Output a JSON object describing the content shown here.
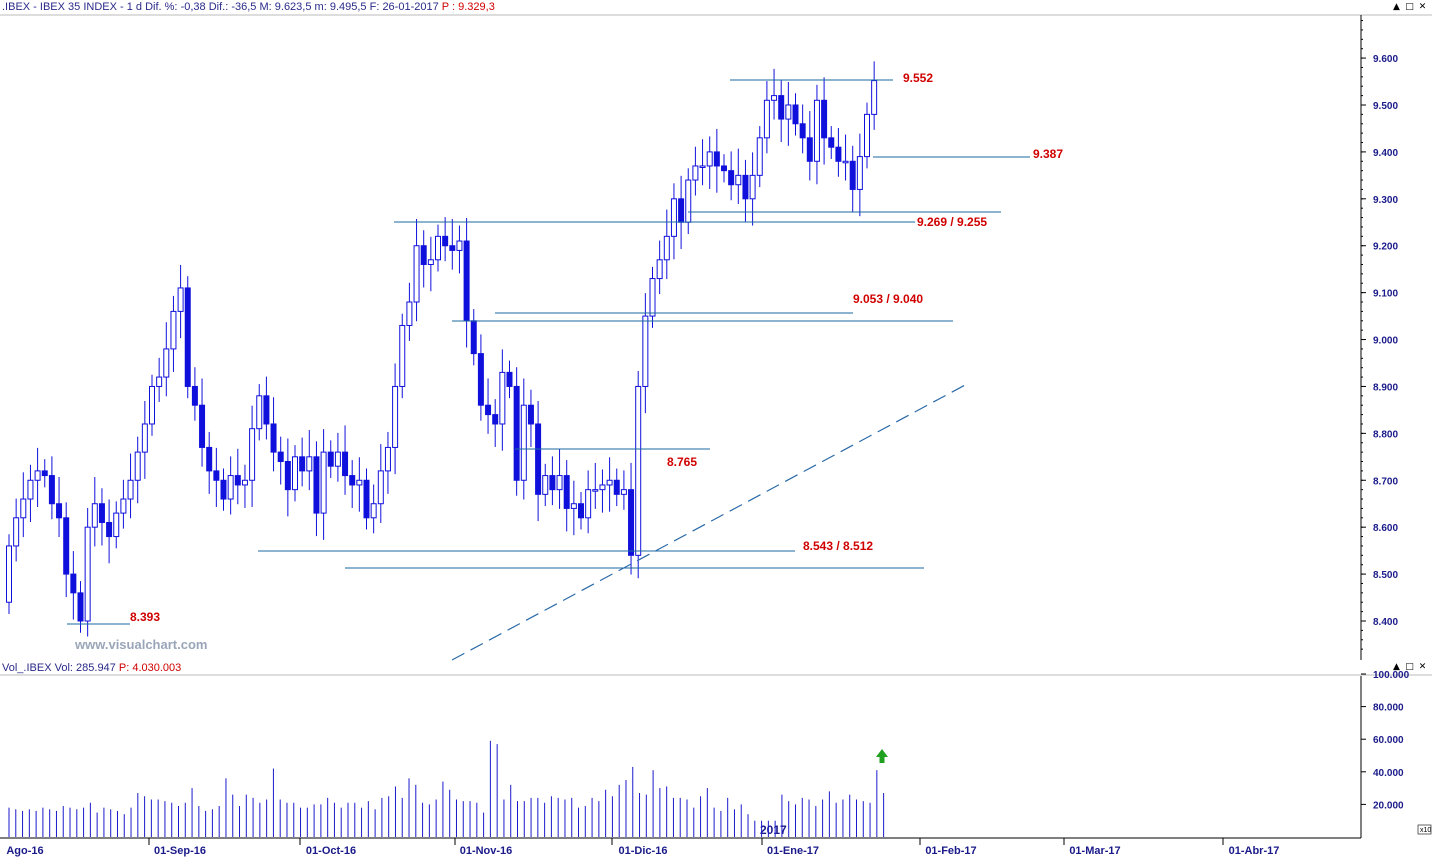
{
  "price_header": {
    "symbol": ".IBEX",
    "name": "IBEX 35 INDEX",
    "period": "1 d",
    "change_pct_label": "Dif. %:",
    "change_pct": "-0,38",
    "change_label": "Dif.:",
    "change": "-36,5",
    "high_label": "M:",
    "high": "9.623,5",
    "low_label": "m:",
    "low": "9.495,5",
    "date_label": "F:",
    "date": "26-01-2017",
    "price_label": "P :",
    "price": "9.329,3"
  },
  "volume_header": {
    "label": "Vol_.IBEX",
    "vol_label": "Vol:",
    "vol": "285.947",
    "price_label": "P:",
    "price": "4.030.003"
  },
  "watermark": "www.visualchart.com",
  "scale_multiplier": "x10",
  "year_marker": "2017",
  "window_buttons": {
    "minimize": "▲",
    "restore": "□",
    "close": "✕"
  },
  "colors": {
    "candle": "#1010dd",
    "level_line": "#1a6aa0",
    "level_label": "#d00000",
    "trendline": "#2a6aa8",
    "volume_bar": "#1a1acc",
    "arrow": "#1fa01f",
    "axis_text": "#1a1a8a"
  },
  "chart_data": [
    {
      "type": "candlestick",
      "title": "IBEX 35 INDEX",
      "x_tick_labels": [
        "Ago-16",
        "01-Sep-16",
        "01-Oct-16",
        "01-Nov-16",
        "01-Dic-16",
        "01-Ene-17",
        "01-Feb-17",
        "01-Mar-17",
        "01-Abr-17"
      ],
      "y_tick_labels": [
        "8.400",
        "8.500",
        "8.600",
        "8.700",
        "8.800",
        "8.900",
        "9.000",
        "9.100",
        "9.200",
        "9.300",
        "9.400",
        "9.500",
        "9.600"
      ],
      "ylim": [
        8.27,
        9.7
      ],
      "grid": false,
      "closes": [
        8.56,
        8.62,
        8.66,
        8.7,
        8.72,
        8.71,
        8.65,
        8.62,
        8.5,
        8.46,
        8.4,
        8.6,
        8.65,
        8.61,
        8.58,
        8.63,
        8.66,
        8.7,
        8.76,
        8.82,
        8.9,
        8.92,
        8.98,
        9.06,
        9.11,
        8.9,
        8.86,
        8.77,
        8.72,
        8.7,
        8.66,
        8.71,
        8.69,
        8.7,
        8.81,
        8.88,
        8.82,
        8.76,
        8.74,
        8.68,
        8.75,
        8.72,
        8.75,
        8.63,
        8.76,
        8.73,
        8.76,
        8.71,
        8.69,
        8.7,
        8.62,
        8.65,
        8.72,
        8.77,
        8.9,
        9.03,
        9.08,
        9.2,
        9.16,
        9.17,
        9.22,
        9.2,
        9.19,
        9.21,
        9.04,
        8.97,
        8.86,
        8.84,
        8.82,
        8.93,
        8.9,
        8.7,
        8.86,
        8.82,
        8.67,
        8.71,
        8.68,
        8.71,
        8.64,
        8.65,
        8.62,
        8.68,
        8.68,
        8.69,
        8.7,
        8.67,
        8.68,
        8.54,
        8.9,
        9.05,
        9.13,
        9.17,
        9.22,
        9.3,
        9.25,
        9.34,
        9.37,
        9.37,
        9.4,
        9.37,
        9.36,
        9.33,
        9.35,
        9.3,
        9.35,
        9.43,
        9.51,
        9.52,
        9.47,
        9.5,
        9.46,
        9.43,
        9.38,
        9.51,
        9.43,
        9.41,
        9.38,
        9.38,
        9.32,
        9.39,
        9.48,
        9.552
      ],
      "levels": [
        {
          "label": "9.552",
          "value": 9.552
        },
        {
          "label": "9.387",
          "value": 9.387
        },
        {
          "label": "9.269 / 9.255",
          "values": [
            9.269,
            9.255
          ]
        },
        {
          "label": "9.053 / 9.040",
          "values": [
            9.053,
            9.04
          ]
        },
        {
          "label": "8.765",
          "value": 8.765
        },
        {
          "label": "8.543 / 8.512",
          "values": [
            8.543,
            8.512
          ]
        },
        {
          "label": "8.393",
          "value": 8.393
        }
      ],
      "trendline": {
        "style": "dashed",
        "from": 8.34,
        "to": 8.9
      }
    },
    {
      "type": "bar",
      "title": "Vol_.IBEX",
      "y_tick_labels": [
        "20.000",
        "40.000",
        "60.000",
        "80.000",
        "100.000"
      ],
      "ylim": [
        0,
        100
      ],
      "unit_multiplier": "x10",
      "values": [
        18,
        17,
        16,
        17,
        16,
        18,
        17,
        16,
        19,
        18,
        17,
        18,
        21,
        15,
        18,
        17,
        16,
        14,
        18,
        27,
        25,
        23,
        23,
        22,
        21,
        19,
        21,
        30,
        19,
        16,
        17,
        19,
        36,
        26,
        19,
        26,
        24,
        21,
        23,
        42,
        23,
        21,
        21,
        18,
        18,
        20,
        20,
        24,
        21,
        18,
        21,
        21,
        18,
        22,
        17,
        24,
        25,
        31,
        24,
        36,
        32,
        21,
        20,
        23,
        34,
        29,
        23,
        22,
        22,
        21,
        15,
        59,
        57,
        23,
        32,
        22,
        22,
        24,
        24,
        21,
        25,
        24,
        23,
        24,
        18,
        19,
        24,
        22,
        29,
        25,
        32,
        35,
        43,
        27,
        26,
        41,
        30,
        31,
        24,
        24,
        23,
        18,
        25,
        30,
        18,
        16,
        24,
        17,
        20,
        14,
        10,
        10,
        10,
        10,
        26,
        22,
        20,
        24,
        23,
        19,
        23,
        28,
        21,
        23,
        26,
        23,
        22,
        21,
        41,
        27
      ],
      "annotation": "up-arrow"
    }
  ]
}
